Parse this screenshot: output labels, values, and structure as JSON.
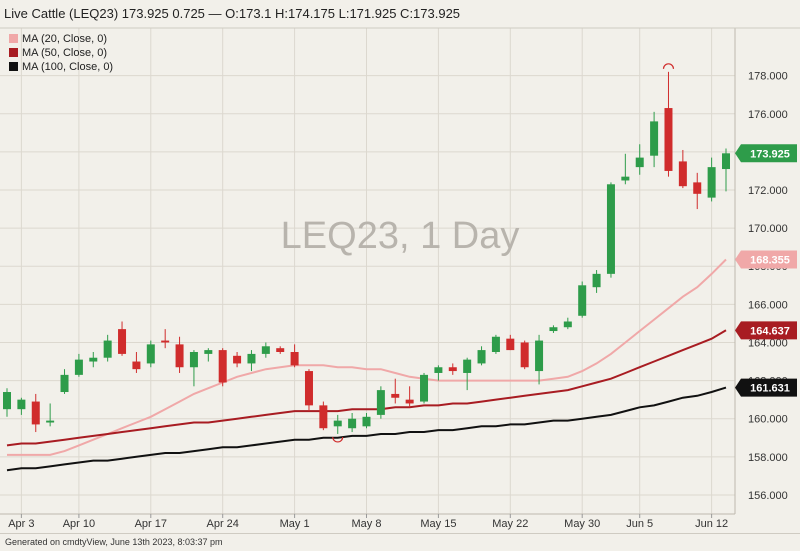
{
  "header": {
    "title": "Live Cattle (LEQ23) 173.925 0.725 — O:173.1 H:174.175 L:171.925 C:173.925"
  },
  "footer": {
    "text": "Generated on cmdtyView, June 13th 2023, 8:03:37 pm"
  },
  "chart_data": {
    "type": "candlestick",
    "watermark": "LEQ23, 1 Day",
    "ylim": [
      155,
      180.5
    ],
    "y_ticks": [
      156,
      158,
      160,
      162,
      164,
      166,
      168,
      170,
      172,
      174,
      176,
      178
    ],
    "x_tick_labels": [
      "Apr 3",
      "Apr 10",
      "Apr 17",
      "Apr 24",
      "May 1",
      "May 8",
      "May 15",
      "May 22",
      "May 30",
      "Jun 5",
      "Jun 12"
    ],
    "grid": true,
    "legend_position": "top-left",
    "colors": {
      "up": "#2e9c4a",
      "down": "#d02c2c",
      "ma20": "#f0a8a8",
      "ma50": "#a81c22",
      "ma100": "#111111"
    },
    "legend": [
      "MA (20, Close, 0)",
      "MA (50, Close, 0)",
      "MA (100, Close, 0)"
    ],
    "last_values": {
      "close": "173.925",
      "ma20": "168.355",
      "ma50": "164.637",
      "ma100": "161.631"
    },
    "candles": [
      {
        "date": "Mar 31",
        "o": 160.5,
        "h": 161.6,
        "l": 160.1,
        "c": 161.4
      },
      {
        "date": "Apr 3",
        "o": 160.5,
        "h": 161.1,
        "l": 160.2,
        "c": 161.0
      },
      {
        "date": "Apr 4",
        "o": 160.9,
        "h": 161.3,
        "l": 159.3,
        "c": 159.7
      },
      {
        "date": "Apr 5",
        "o": 159.8,
        "h": 160.8,
        "l": 159.6,
        "c": 159.9
      },
      {
        "date": "Apr 6",
        "o": 161.4,
        "h": 162.6,
        "l": 161.3,
        "c": 162.3
      },
      {
        "date": "Apr 10",
        "o": 162.3,
        "h": 163.4,
        "l": 162.2,
        "c": 163.1
      },
      {
        "date": "Apr 11",
        "o": 163.0,
        "h": 163.5,
        "l": 162.7,
        "c": 163.2
      },
      {
        "date": "Apr 12",
        "o": 163.2,
        "h": 164.4,
        "l": 163.0,
        "c": 164.1
      },
      {
        "date": "Apr 13",
        "o": 164.7,
        "h": 165.1,
        "l": 163.3,
        "c": 163.4
      },
      {
        "date": "Apr 14",
        "o": 163.0,
        "h": 163.5,
        "l": 162.4,
        "c": 162.6
      },
      {
        "date": "Apr 17",
        "o": 162.9,
        "h": 164.1,
        "l": 162.7,
        "c": 163.9
      },
      {
        "date": "Apr 18",
        "o": 164.1,
        "h": 164.7,
        "l": 163.7,
        "c": 164.0
      },
      {
        "date": "Apr 19",
        "o": 163.9,
        "h": 164.3,
        "l": 162.4,
        "c": 162.7
      },
      {
        "date": "Apr 20",
        "o": 162.7,
        "h": 163.6,
        "l": 161.7,
        "c": 163.5
      },
      {
        "date": "Apr 21",
        "o": 163.4,
        "h": 163.7,
        "l": 163.0,
        "c": 163.6
      },
      {
        "date": "Apr 24",
        "o": 163.6,
        "h": 163.7,
        "l": 161.7,
        "c": 161.9
      },
      {
        "date": "Apr 25",
        "o": 163.3,
        "h": 163.5,
        "l": 162.7,
        "c": 162.9
      },
      {
        "date": "Apr 26",
        "o": 162.9,
        "h": 163.6,
        "l": 162.5,
        "c": 163.4
      },
      {
        "date": "Apr 27",
        "o": 163.4,
        "h": 164.0,
        "l": 163.2,
        "c": 163.8
      },
      {
        "date": "Apr 28",
        "o": 163.7,
        "h": 163.8,
        "l": 163.4,
        "c": 163.5
      },
      {
        "date": "May 1",
        "o": 163.5,
        "h": 163.9,
        "l": 162.7,
        "c": 162.8
      },
      {
        "date": "May 2",
        "o": 162.5,
        "h": 162.6,
        "l": 160.4,
        "c": 160.7
      },
      {
        "date": "May 3",
        "o": 160.7,
        "h": 160.9,
        "l": 159.4,
        "c": 159.5
      },
      {
        "date": "May 4",
        "o": 159.6,
        "h": 160.2,
        "l": 159.2,
        "c": 159.9
      },
      {
        "date": "May 5",
        "o": 159.5,
        "h": 160.3,
        "l": 159.3,
        "c": 160.0
      },
      {
        "date": "May 8",
        "o": 159.6,
        "h": 160.3,
        "l": 159.5,
        "c": 160.1
      },
      {
        "date": "May 9",
        "o": 160.2,
        "h": 161.7,
        "l": 160.0,
        "c": 161.5
      },
      {
        "date": "May 10",
        "o": 161.3,
        "h": 162.1,
        "l": 160.8,
        "c": 161.1
      },
      {
        "date": "May 11",
        "o": 161.0,
        "h": 161.7,
        "l": 160.6,
        "c": 160.8
      },
      {
        "date": "May 12",
        "o": 160.9,
        "h": 162.4,
        "l": 160.8,
        "c": 162.3
      },
      {
        "date": "May 15",
        "o": 162.4,
        "h": 162.8,
        "l": 162.0,
        "c": 162.7
      },
      {
        "date": "May 16",
        "o": 162.7,
        "h": 162.9,
        "l": 162.3,
        "c": 162.5
      },
      {
        "date": "May 17",
        "o": 162.4,
        "h": 163.2,
        "l": 161.5,
        "c": 163.1
      },
      {
        "date": "May 18",
        "o": 162.9,
        "h": 163.8,
        "l": 162.8,
        "c": 163.6
      },
      {
        "date": "May 19",
        "o": 163.5,
        "h": 164.4,
        "l": 163.4,
        "c": 164.3
      },
      {
        "date": "May 22",
        "o": 164.2,
        "h": 164.4,
        "l": 163.6,
        "c": 163.6
      },
      {
        "date": "May 23",
        "o": 164.0,
        "h": 164.1,
        "l": 162.6,
        "c": 162.7
      },
      {
        "date": "May 24",
        "o": 162.5,
        "h": 164.4,
        "l": 161.8,
        "c": 164.1
      },
      {
        "date": "May 25",
        "o": 164.6,
        "h": 164.9,
        "l": 164.5,
        "c": 164.8
      },
      {
        "date": "May 26",
        "o": 164.8,
        "h": 165.3,
        "l": 164.7,
        "c": 165.1
      },
      {
        "date": "May 30",
        "o": 165.4,
        "h": 167.2,
        "l": 165.3,
        "c": 167.0
      },
      {
        "date": "May 31",
        "o": 166.9,
        "h": 167.8,
        "l": 166.6,
        "c": 167.6
      },
      {
        "date": "Jun 1",
        "o": 167.6,
        "h": 172.4,
        "l": 167.4,
        "c": 172.3
      },
      {
        "date": "Jun 2",
        "o": 172.5,
        "h": 173.9,
        "l": 172.3,
        "c": 172.7
      },
      {
        "date": "Jun 5",
        "o": 173.2,
        "h": 174.4,
        "l": 172.8,
        "c": 173.7
      },
      {
        "date": "Jun 6",
        "o": 173.8,
        "h": 176.1,
        "l": 173.2,
        "c": 175.6
      },
      {
        "date": "Jun 7",
        "o": 176.3,
        "h": 178.2,
        "l": 172.7,
        "c": 173.0
      },
      {
        "date": "Jun 8",
        "o": 173.5,
        "h": 174.1,
        "l": 172.1,
        "c": 172.2
      },
      {
        "date": "Jun 9",
        "o": 172.4,
        "h": 172.9,
        "l": 171.0,
        "c": 171.8
      },
      {
        "date": "Jun 12",
        "o": 171.6,
        "h": 173.7,
        "l": 171.4,
        "c": 173.2
      },
      {
        "date": "Jun 13",
        "o": 173.1,
        "h": 174.175,
        "l": 171.925,
        "c": 173.925
      }
    ],
    "ma20": [
      158.1,
      158.1,
      158.1,
      158.1,
      158.3,
      158.6,
      158.9,
      159.2,
      159.5,
      159.8,
      160.1,
      160.5,
      160.9,
      161.3,
      161.6,
      161.9,
      162.2,
      162.4,
      162.6,
      162.7,
      162.8,
      162.8,
      162.8,
      162.7,
      162.7,
      162.6,
      162.6,
      162.4,
      162.2,
      162.1,
      162.0,
      162.0,
      162.0,
      162.0,
      162.0,
      162.0,
      162.0,
      162.0,
      162.1,
      162.2,
      162.5,
      162.9,
      163.4,
      164.0,
      164.6,
      165.2,
      165.8,
      166.4,
      166.9,
      167.6,
      168.355
    ],
    "ma50": [
      158.6,
      158.7,
      158.7,
      158.8,
      158.9,
      159.0,
      159.1,
      159.2,
      159.3,
      159.4,
      159.5,
      159.6,
      159.7,
      159.8,
      159.8,
      159.9,
      160.0,
      160.1,
      160.2,
      160.3,
      160.4,
      160.4,
      160.4,
      160.4,
      160.5,
      160.5,
      160.5,
      160.6,
      160.6,
      160.7,
      160.7,
      160.8,
      160.8,
      160.9,
      161.0,
      161.1,
      161.2,
      161.3,
      161.4,
      161.5,
      161.7,
      161.9,
      162.1,
      162.4,
      162.7,
      163.0,
      163.3,
      163.6,
      163.9,
      164.2,
      164.637
    ],
    "ma100": [
      157.3,
      157.4,
      157.4,
      157.5,
      157.6,
      157.7,
      157.8,
      157.8,
      157.9,
      158.0,
      158.1,
      158.2,
      158.2,
      158.3,
      158.4,
      158.5,
      158.5,
      158.6,
      158.7,
      158.8,
      158.9,
      158.9,
      159.0,
      159.0,
      159.1,
      159.1,
      159.2,
      159.2,
      159.3,
      159.3,
      159.4,
      159.4,
      159.5,
      159.6,
      159.6,
      159.7,
      159.7,
      159.8,
      159.9,
      159.9,
      160.0,
      160.1,
      160.2,
      160.4,
      160.6,
      160.7,
      160.9,
      161.1,
      161.2,
      161.4,
      161.631
    ]
  }
}
